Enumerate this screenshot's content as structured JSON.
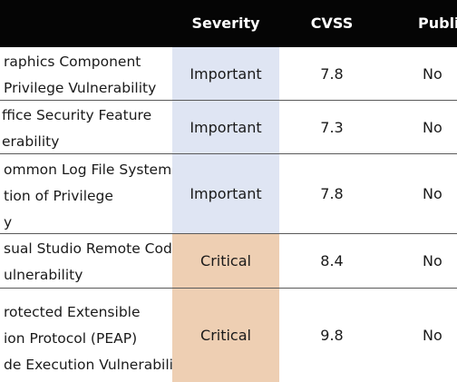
{
  "header": {
    "severity": "Severity",
    "cvss": "CVSS",
    "public": "Public"
  },
  "rows": [
    {
      "name_lines": [
        "raphics Component",
        "Privilege Vulnerability"
      ],
      "severity": "Important",
      "cvss": "7.8",
      "public": "No"
    },
    {
      "name_lines": [
        "ffice Security Feature",
        "erability"
      ],
      "severity": "Important",
      "cvss": "7.3",
      "public": "No"
    },
    {
      "name_lines": [
        "ommon Log File System",
        "tion of Privilege",
        "y"
      ],
      "severity": "Important",
      "cvss": "7.8",
      "public": "No"
    },
    {
      "name_lines": [
        "sual Studio Remote Code",
        "ulnerability"
      ],
      "severity": "Critical",
      "cvss": "8.4",
      "public": "No"
    },
    {
      "name_lines": [
        "rotected Extensible",
        "ion Protocol (PEAP)",
        "de Execution Vulnerability"
      ],
      "severity": "Critical",
      "cvss": "9.8",
      "public": "No"
    }
  ],
  "colors": {
    "header_bg": "#050505",
    "important_bg": "#dfe5f3",
    "critical_bg": "#eecfb3"
  }
}
